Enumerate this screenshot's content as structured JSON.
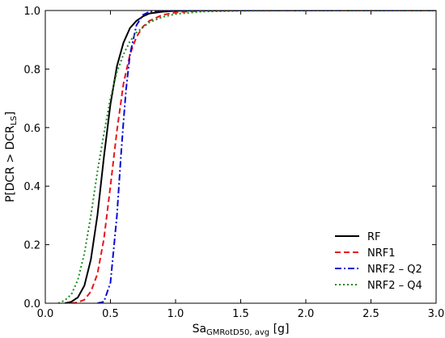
{
  "chart_data": {
    "type": "line",
    "title": "",
    "xlabel": {
      "main": "Sa",
      "sub": "GMRotD50, avg",
      "unit": " [g]"
    },
    "ylabel": {
      "pre": "P[DCR > DCR",
      "sub": "LS",
      "post": "]"
    },
    "xlim": [
      0.0,
      3.0
    ],
    "ylim": [
      0.0,
      1.0
    ],
    "x_ticks": [
      "0.0",
      "0.5",
      "1.0",
      "1.5",
      "2.0",
      "2.5",
      "3.0"
    ],
    "y_ticks": [
      "0.0",
      "0.2",
      "0.4",
      "0.6",
      "0.8",
      "1.0"
    ],
    "grid": false,
    "legend_position": "bottom-right",
    "series": [
      {
        "name": "RF",
        "color": "#000000",
        "dash": "solid",
        "x": [
          0.15,
          0.2,
          0.25,
          0.3,
          0.35,
          0.4,
          0.45,
          0.5,
          0.55,
          0.6,
          0.65,
          0.7,
          0.75,
          0.8,
          0.9,
          1.0,
          1.2,
          1.5,
          2.0,
          2.5,
          3.0
        ],
        "y": [
          0.0,
          0.005,
          0.02,
          0.06,
          0.15,
          0.3,
          0.5,
          0.68,
          0.81,
          0.89,
          0.94,
          0.965,
          0.98,
          0.99,
          0.996,
          0.999,
          1.0,
          1.0,
          1.0,
          1.0,
          1.0
        ]
      },
      {
        "name": "NRF1",
        "color": "#e8141a",
        "dash": "dashed",
        "x": [
          0.2,
          0.25,
          0.3,
          0.35,
          0.4,
          0.45,
          0.5,
          0.55,
          0.6,
          0.65,
          0.7,
          0.75,
          0.8,
          0.9,
          1.0,
          1.1,
          1.2,
          1.5,
          2.0,
          2.5,
          3.0
        ],
        "y": [
          0.0,
          0.003,
          0.012,
          0.04,
          0.1,
          0.22,
          0.4,
          0.59,
          0.75,
          0.85,
          0.91,
          0.945,
          0.965,
          0.985,
          0.993,
          0.997,
          0.999,
          1.0,
          1.0,
          1.0,
          1.0
        ]
      },
      {
        "name": "NRF2 – Q2",
        "color": "#0a0ad6",
        "dash": "dashdot",
        "x": [
          0.4,
          0.45,
          0.5,
          0.55,
          0.58,
          0.6,
          0.62,
          0.65,
          0.7,
          0.75,
          0.8,
          0.9,
          1.0,
          1.5,
          2.0,
          2.5,
          3.0
        ],
        "y": [
          0.0,
          0.005,
          0.07,
          0.3,
          0.5,
          0.62,
          0.73,
          0.85,
          0.95,
          0.985,
          0.996,
          0.999,
          1.0,
          1.0,
          1.0,
          1.0,
          1.0
        ]
      },
      {
        "name": "NRF2 – Q4",
        "color": "#1a8a1a",
        "dash": "dotted",
        "x": [
          0.1,
          0.15,
          0.2,
          0.25,
          0.3,
          0.35,
          0.4,
          0.45,
          0.5,
          0.55,
          0.6,
          0.65,
          0.7,
          0.8,
          0.9,
          1.0,
          1.2,
          1.5,
          2.0,
          2.5,
          3.0
        ],
        "y": [
          0.0,
          0.01,
          0.03,
          0.08,
          0.17,
          0.3,
          0.45,
          0.58,
          0.7,
          0.79,
          0.85,
          0.895,
          0.925,
          0.96,
          0.978,
          0.988,
          0.996,
          0.999,
          1.0,
          1.0,
          1.0
        ]
      }
    ]
  }
}
